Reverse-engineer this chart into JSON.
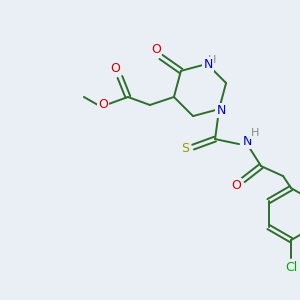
{
  "background_color": "#eaeff5",
  "bond_color": "#2d6e2d",
  "atom_colors": {
    "O": "#cc0000",
    "N": "#0000cc",
    "S": "#999900",
    "Cl": "#00aa00",
    "H": "#888888",
    "C": "#2d6e2d"
  },
  "figsize": [
    3.0,
    3.0
  ],
  "dpi": 100
}
